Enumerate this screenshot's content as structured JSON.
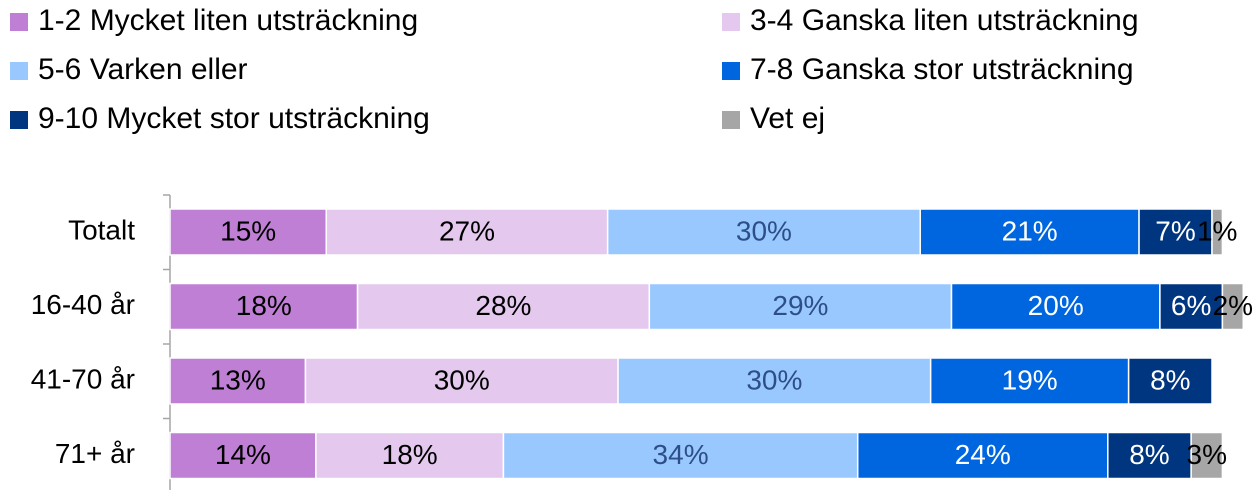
{
  "chart_data": {
    "type": "stacked-bar-horizontal",
    "categories": [
      "Totalt",
      "16-40 år",
      "41-70 år",
      "71+ år"
    ],
    "series": [
      {
        "name": "1-2 Mycket liten utsträckning",
        "color": "#bf7fd4",
        "label_color": "#000000",
        "values": [
          15,
          18,
          13,
          14
        ],
        "value_labels": [
          "15%",
          "18%",
          "13%",
          "14%"
        ]
      },
      {
        "name": "3-4 Ganska liten utsträckning",
        "color": "#e4c8ee",
        "label_color": "#000000",
        "values": [
          27,
          28,
          30,
          18
        ],
        "value_labels": [
          "27%",
          "28%",
          "30%",
          "18%"
        ]
      },
      {
        "name": "5-6 Varken eller",
        "color": "#99c8ff",
        "label_color": "#2e4e8a",
        "values": [
          30,
          29,
          30,
          34
        ],
        "value_labels": [
          "30%",
          "29%",
          "30%",
          "34%"
        ]
      },
      {
        "name": "7-8 Ganska stor utsträckning",
        "color": "#0066e0",
        "label_color": "#ffffff",
        "values": [
          21,
          20,
          19,
          24
        ],
        "value_labels": [
          "21%",
          "20%",
          "19%",
          "24%"
        ]
      },
      {
        "name": "9-10 Mycket stor utsträckning",
        "color": "#003580",
        "label_color": "#ffffff",
        "values": [
          7,
          6,
          8,
          8
        ],
        "value_labels": [
          "7%",
          "6%",
          "8%",
          "8%"
        ]
      },
      {
        "name": "Vet ej",
        "color": "#a6a6a6",
        "label_color": "#000000",
        "values": [
          1,
          2,
          null,
          3
        ],
        "value_labels": [
          "1%",
          "2%",
          null,
          "3%"
        ]
      }
    ]
  }
}
